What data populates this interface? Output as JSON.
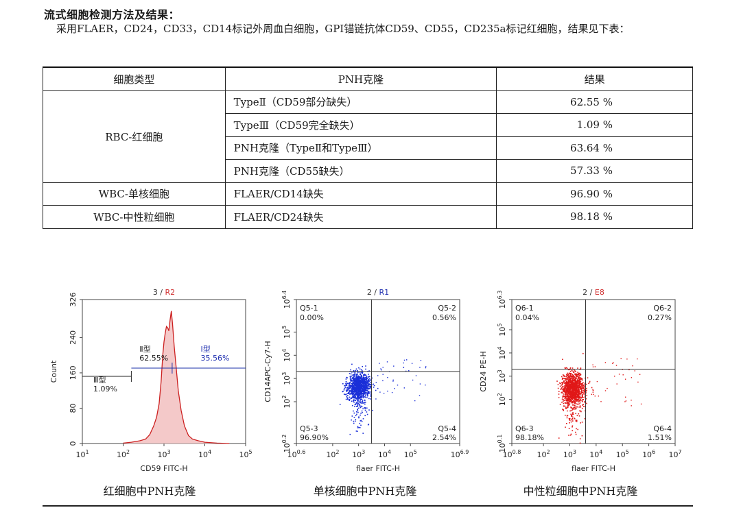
{
  "heading": "流式细胞检测方法及结果：",
  "intro": "采用FLAER，CD24，CD33，CD14标记外周血白细胞，GPI锚链抗体CD59、CD55，CD235a标记红细胞，结果见下表：",
  "table": {
    "headers": [
      "细胞类型",
      "PNH克隆",
      "结果"
    ],
    "groups": [
      {
        "type": "RBC-红细胞",
        "rows": [
          {
            "clone": "TypeⅡ（CD59部分缺失）",
            "value": "62.55 %"
          },
          {
            "clone": "TypeⅢ（CD59完全缺失）",
            "value": "1.09 %"
          },
          {
            "clone": "PNH克隆（TypeⅡ和TypeⅢ）",
            "value": "63.64 %"
          },
          {
            "clone": "PNH克隆（CD55缺失）",
            "value": "57.33 %"
          }
        ]
      },
      {
        "type": "WBC-单核细胞",
        "rows": [
          {
            "clone": "FLAER/CD14缺失",
            "value": "96.90 %"
          }
        ]
      },
      {
        "type": "WBC-中性粒细胞",
        "rows": [
          {
            "clone": "FLAER/CD24缺失",
            "value": "98.18 %"
          }
        ]
      }
    ]
  },
  "chart_data": [
    {
      "type": "area",
      "title_num": "3 / ",
      "title_gate": "R2",
      "title_gate_color": "#d03030",
      "xlabel": "CD59 FITC-H",
      "ylabel": "Count",
      "x_ticks": [
        {
          "b": "10",
          "e": "1"
        },
        {
          "b": "10",
          "e": "2"
        },
        {
          "b": "10",
          "e": "3"
        },
        {
          "b": "10",
          "e": "4"
        },
        {
          "b": "10",
          "e": "5"
        }
      ],
      "y_ticks": [
        "0",
        "80",
        "160",
        "240",
        "326"
      ],
      "xlim_log10": [
        1,
        5
      ],
      "ylim": [
        0,
        326
      ],
      "series_color": "#cc2020",
      "histogram": [
        [
          2.0,
          1
        ],
        [
          2.2,
          3
        ],
        [
          2.4,
          6
        ],
        [
          2.55,
          10
        ],
        [
          2.65,
          20
        ],
        [
          2.75,
          40
        ],
        [
          2.82,
          60
        ],
        [
          2.88,
          90
        ],
        [
          2.93,
          140
        ],
        [
          2.97,
          200
        ],
        [
          3.0,
          230
        ],
        [
          3.03,
          250
        ],
        [
          3.06,
          265
        ],
        [
          3.09,
          262
        ],
        [
          3.12,
          255
        ],
        [
          3.15,
          280
        ],
        [
          3.18,
          300
        ],
        [
          3.21,
          270
        ],
        [
          3.25,
          220
        ],
        [
          3.3,
          170
        ],
        [
          3.35,
          120
        ],
        [
          3.42,
          75
        ],
        [
          3.5,
          40
        ],
        [
          3.6,
          18
        ],
        [
          3.7,
          10
        ],
        [
          3.85,
          6
        ],
        [
          4.0,
          3
        ],
        [
          4.3,
          1
        ],
        [
          4.6,
          0
        ]
      ],
      "gates": [
        {
          "name": "Ⅲ型",
          "value": "1.09%"
        },
        {
          "name": "Ⅱ型",
          "value": "62.55%"
        },
        {
          "name": "Ⅰ型",
          "value": "35.56%"
        }
      ]
    },
    {
      "type": "scatter",
      "title_num": "2 / ",
      "title_gate": "R1",
      "title_gate_color": "#2030b0",
      "xlabel": "flaer FITC-H",
      "ylabel": "CD14APC-Cy7-H",
      "x_ticks": [
        {
          "b": "10",
          "e": "0.6"
        },
        {
          "b": "10",
          "e": "2"
        },
        {
          "b": "10",
          "e": "3"
        },
        {
          "b": "10",
          "e": "4"
        },
        {
          "b": "10",
          "e": "5"
        },
        {
          "b": "10",
          "e": "6.9"
        }
      ],
      "y_ticks": [
        {
          "b": "10",
          "e": "0.2"
        },
        {
          "b": "10",
          "e": "2"
        },
        {
          "b": "10",
          "e": "3"
        },
        {
          "b": "10",
          "e": "4"
        },
        {
          "b": "10",
          "e": "5"
        },
        {
          "b": "10",
          "e": "6.4"
        }
      ],
      "xlim_log10": [
        0.6,
        6.9
      ],
      "ylim_log10": [
        0.2,
        6.4
      ],
      "quad_x_log10": 3.5,
      "quad_y_log10": 3.3,
      "point_color": "#1a2fd8",
      "cluster": {
        "cx": 3.0,
        "cy": 2.7,
        "sx": 0.22,
        "sy": 0.28,
        "n": 1200
      },
      "quadrants": [
        {
          "name": "Q5-1",
          "value": "0.00%"
        },
        {
          "name": "Q5-2",
          "value": "0.56%"
        },
        {
          "name": "Q5-3",
          "value": "96.90%"
        },
        {
          "name": "Q5-4",
          "value": "2.54%"
        }
      ]
    },
    {
      "type": "scatter",
      "title_num": "2 / ",
      "title_gate": "E8",
      "title_gate_color": "#d03030",
      "xlabel": "flaer FITC-H",
      "ylabel": "CD24 PE-H",
      "x_ticks": [
        {
          "b": "10",
          "e": "0.8"
        },
        {
          "b": "10",
          "e": "2"
        },
        {
          "b": "10",
          "e": "3"
        },
        {
          "b": "10",
          "e": "4"
        },
        {
          "b": "10",
          "e": "5"
        },
        {
          "b": "10",
          "e": "6"
        },
        {
          "b": "10",
          "e": "7"
        }
      ],
      "y_ticks": [
        {
          "b": "10",
          "e": "0.1"
        },
        {
          "b": "10",
          "e": "2"
        },
        {
          "b": "10",
          "e": "3"
        },
        {
          "b": "10",
          "e": "4"
        },
        {
          "b": "10",
          "e": "5"
        },
        {
          "b": "10",
          "e": "6.3"
        }
      ],
      "xlim_log10": [
        0.8,
        7.0
      ],
      "ylim_log10": [
        0.1,
        6.3
      ],
      "quad_x_log10": 3.6,
      "quad_y_log10": 3.3,
      "point_color": "#e01818",
      "cluster": {
        "cx": 3.1,
        "cy": 2.5,
        "sx": 0.2,
        "sy": 0.35,
        "n": 1300
      },
      "quadrants": [
        {
          "name": "Q6-1",
          "value": "0.04%"
        },
        {
          "name": "Q6-2",
          "value": "0.27%"
        },
        {
          "name": "Q6-3",
          "value": "98.18%"
        },
        {
          "name": "Q6-4",
          "value": "1.51%"
        }
      ]
    }
  ],
  "captions": [
    "红细胞中PNH克隆",
    "单核细胞中PNH克隆",
    "中性粒细胞中PNH克隆"
  ]
}
